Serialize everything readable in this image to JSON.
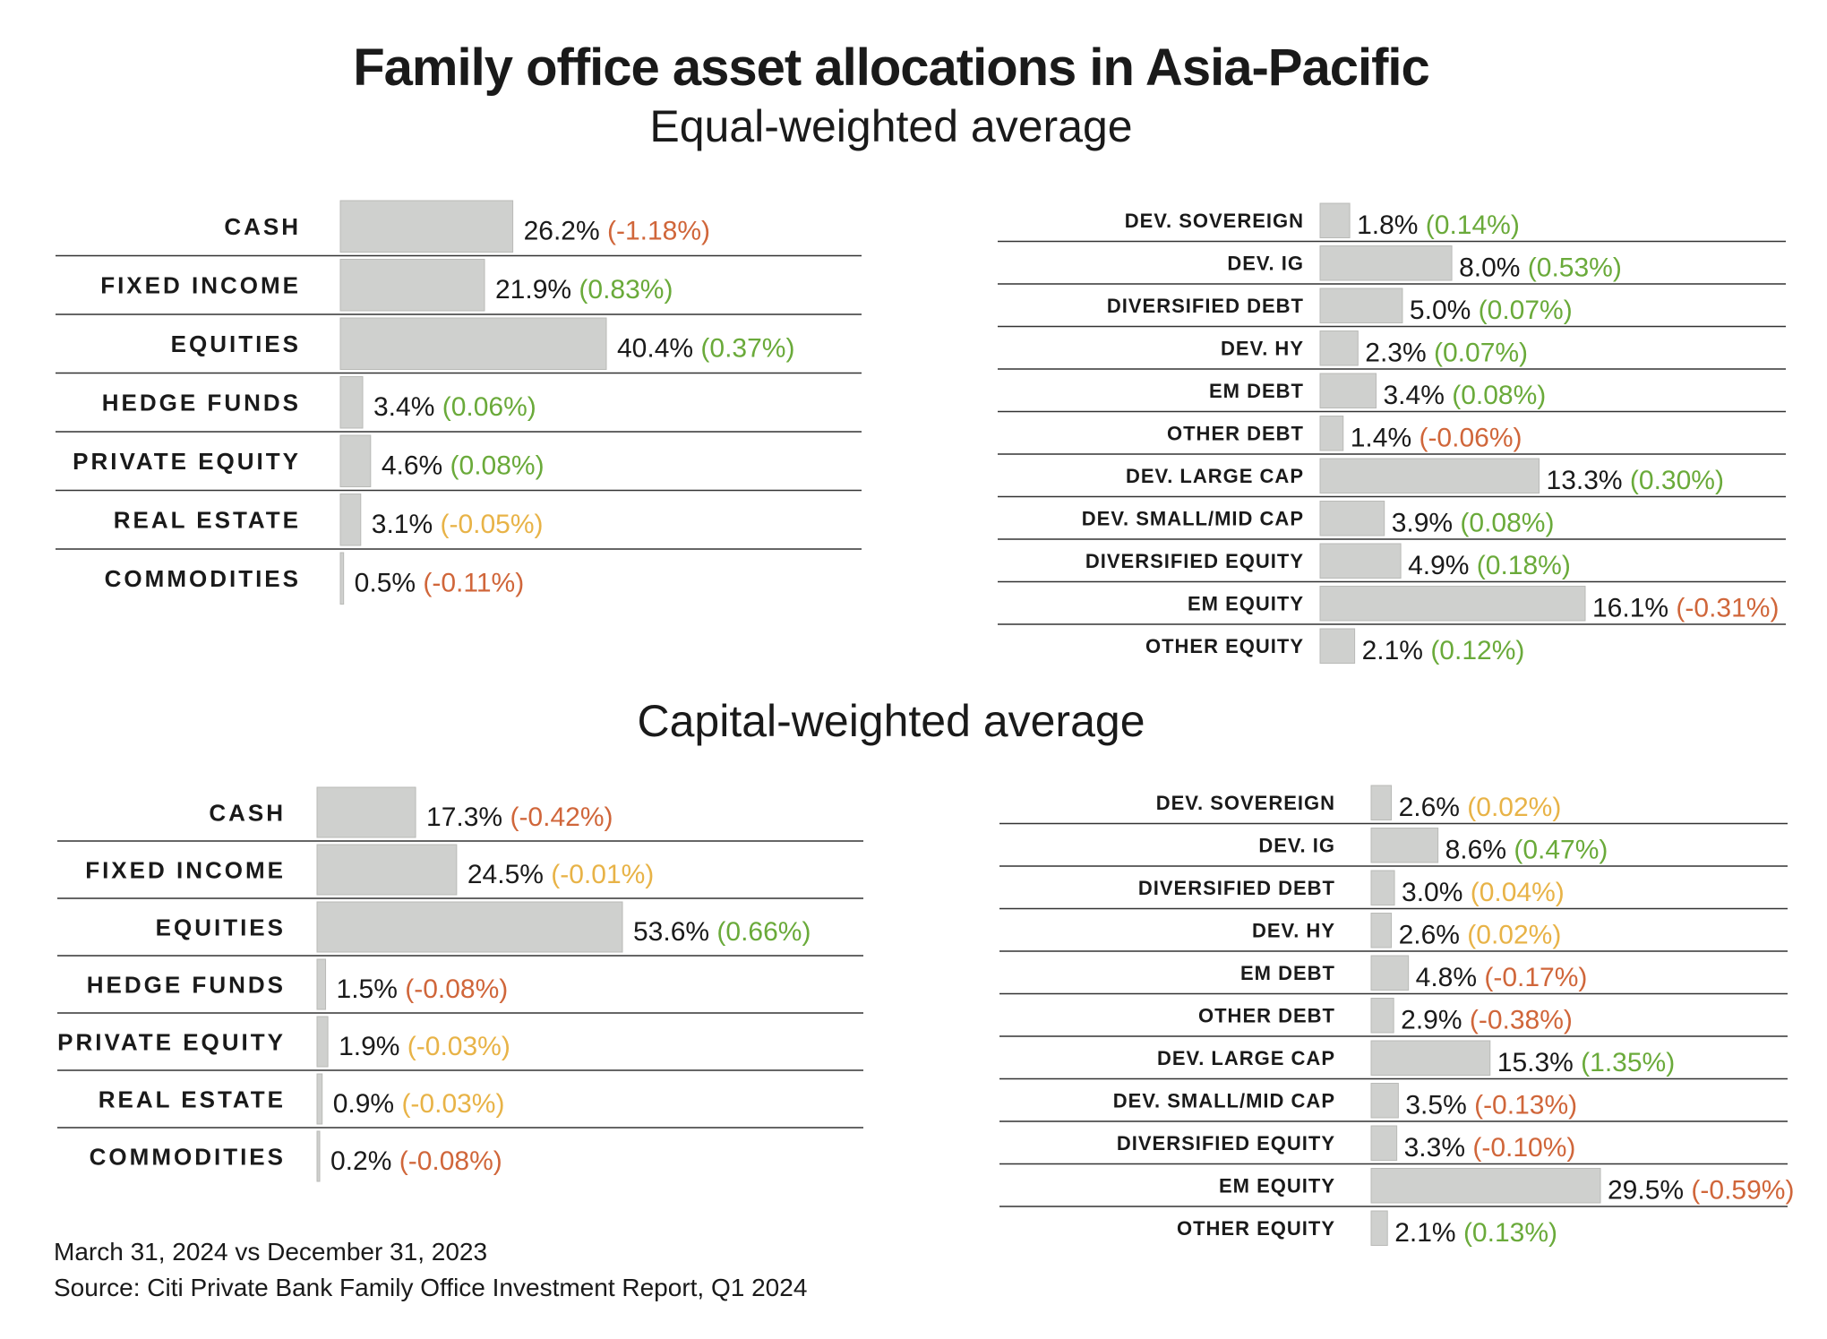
{
  "title": "Family office asset allocations in Asia-Pacific",
  "subtitle_equal": "Equal-weighted average",
  "subtitle_capital": "Capital-weighted average",
  "footer": {
    "date": "March 31, 2024 vs December 31, 2023",
    "source": "Source: Citi Private Bank Family Office Investment Report, Q1 2024"
  },
  "colors": {
    "bar": "#cfd0ce",
    "bar_edge": "#b9bab7",
    "rule": "#333333",
    "change_positive": "#6aaa3a",
    "change_negative": "#d0663a",
    "change_neutral": "#e8b347"
  },
  "chart_data": [
    {
      "type": "bar",
      "orientation": "horizontal",
      "panel": "equal-weighted / asset classes",
      "categories": [
        "CASH",
        "FIXED INCOME",
        "EQUITIES",
        "HEDGE FUNDS",
        "PRIVATE EQUITY",
        "REAL ESTATE",
        "COMMODITIES"
      ],
      "values": [
        26.2,
        21.9,
        40.4,
        3.4,
        4.6,
        3.1,
        0.5
      ],
      "value_labels": [
        "26.2%",
        "21.9%",
        "40.4%",
        "3.4%",
        "4.6%",
        "3.1%",
        "0.5%"
      ],
      "changes": [
        -1.18,
        0.83,
        0.37,
        0.06,
        0.08,
        -0.05,
        -0.11
      ],
      "change_labels": [
        "(-1.18%)",
        "(0.83%)",
        "(0.37%)",
        "(0.06%)",
        "(0.08%)",
        "(-0.05%)",
        "(-0.11%)"
      ],
      "change_tone": [
        "neg",
        "pos",
        "pos",
        "pos",
        "pos",
        "neu",
        "neg"
      ],
      "xlim": [
        0,
        40.4
      ]
    },
    {
      "type": "bar",
      "orientation": "horizontal",
      "panel": "equal-weighted / sub-asset classes",
      "categories": [
        "DEV. SOVEREIGN",
        "DEV. IG",
        "DIVERSIFIED DEBT",
        "DEV. HY",
        "EM DEBT",
        "OTHER DEBT",
        "DEV. LARGE CAP",
        "DEV. SMALL/MID CAP",
        "DIVERSIFIED EQUITY",
        "EM EQUITY",
        "OTHER EQUITY"
      ],
      "values": [
        1.8,
        8.0,
        5.0,
        2.3,
        3.4,
        1.4,
        13.3,
        3.9,
        4.9,
        16.1,
        2.1
      ],
      "value_labels": [
        "1.8%",
        "8.0%",
        "5.0%",
        "2.3%",
        "3.4%",
        "1.4%",
        "13.3%",
        "3.9%",
        "4.9%",
        "16.1%",
        "2.1%"
      ],
      "changes": [
        0.14,
        0.53,
        0.07,
        0.07,
        0.08,
        -0.06,
        0.3,
        0.08,
        0.18,
        -0.31,
        0.12
      ],
      "change_labels": [
        "(0.14%)",
        "(0.53%)",
        "(0.07%)",
        "(0.07%)",
        "(0.08%)",
        "(-0.06%)",
        "(0.30%)",
        "(0.08%)",
        "(0.18%)",
        "(-0.31%)",
        "(0.12%)"
      ],
      "change_tone": [
        "pos",
        "pos",
        "pos",
        "pos",
        "pos",
        "neg",
        "pos",
        "pos",
        "pos",
        "neg",
        "pos"
      ],
      "xlim": [
        0,
        16.1
      ]
    },
    {
      "type": "bar",
      "orientation": "horizontal",
      "panel": "capital-weighted / asset classes",
      "categories": [
        "CASH",
        "FIXED INCOME",
        "EQUITIES",
        "HEDGE FUNDS",
        "PRIVATE EQUITY",
        "REAL ESTATE",
        "COMMODITIES"
      ],
      "values": [
        17.3,
        24.5,
        53.6,
        1.5,
        1.9,
        0.9,
        0.2
      ],
      "value_labels": [
        "17.3%",
        "24.5%",
        "53.6%",
        "1.5%",
        "1.9%",
        "0.9%",
        "0.2%"
      ],
      "changes": [
        -0.42,
        -0.01,
        0.66,
        -0.08,
        -0.03,
        -0.03,
        -0.08
      ],
      "change_labels": [
        "(-0.42%)",
        "(-0.01%)",
        "(0.66%)",
        "(-0.08%)",
        "(-0.03%)",
        "(-0.03%)",
        "(-0.08%)"
      ],
      "change_tone": [
        "neg",
        "neu",
        "pos",
        "neg",
        "neu",
        "neu",
        "neg"
      ],
      "xlim": [
        0,
        53.6
      ]
    },
    {
      "type": "bar",
      "orientation": "horizontal",
      "panel": "capital-weighted / sub-asset classes",
      "categories": [
        "DEV. SOVEREIGN",
        "DEV. IG",
        "DIVERSIFIED DEBT",
        "DEV. HY",
        "EM DEBT",
        "OTHER DEBT",
        "DEV. LARGE CAP",
        "DEV. SMALL/MID CAP",
        "DIVERSIFIED EQUITY",
        "EM EQUITY",
        "OTHER EQUITY"
      ],
      "values": [
        2.6,
        8.6,
        3.0,
        2.6,
        4.8,
        2.9,
        15.3,
        3.5,
        3.3,
        29.5,
        2.1
      ],
      "value_labels": [
        "2.6%",
        "8.6%",
        "3.0%",
        "2.6%",
        "4.8%",
        "2.9%",
        "15.3%",
        "3.5%",
        "3.3%",
        "29.5%",
        "2.1%"
      ],
      "changes": [
        0.02,
        0.47,
        0.04,
        0.02,
        -0.17,
        -0.38,
        1.35,
        -0.13,
        -0.1,
        -0.59,
        0.13
      ],
      "change_labels": [
        "(0.02%)",
        "(0.47%)",
        "(0.04%)",
        "(0.02%)",
        "(-0.17%)",
        "(-0.38%)",
        "(1.35%)",
        "(-0.13%)",
        "(-0.10%)",
        "(-0.59%)",
        "(0.13%)"
      ],
      "change_tone": [
        "neu",
        "pos",
        "neu",
        "neu",
        "neg",
        "neg",
        "pos",
        "neg",
        "neg",
        "neg",
        "pos"
      ],
      "xlim": [
        0,
        29.5
      ]
    }
  ]
}
